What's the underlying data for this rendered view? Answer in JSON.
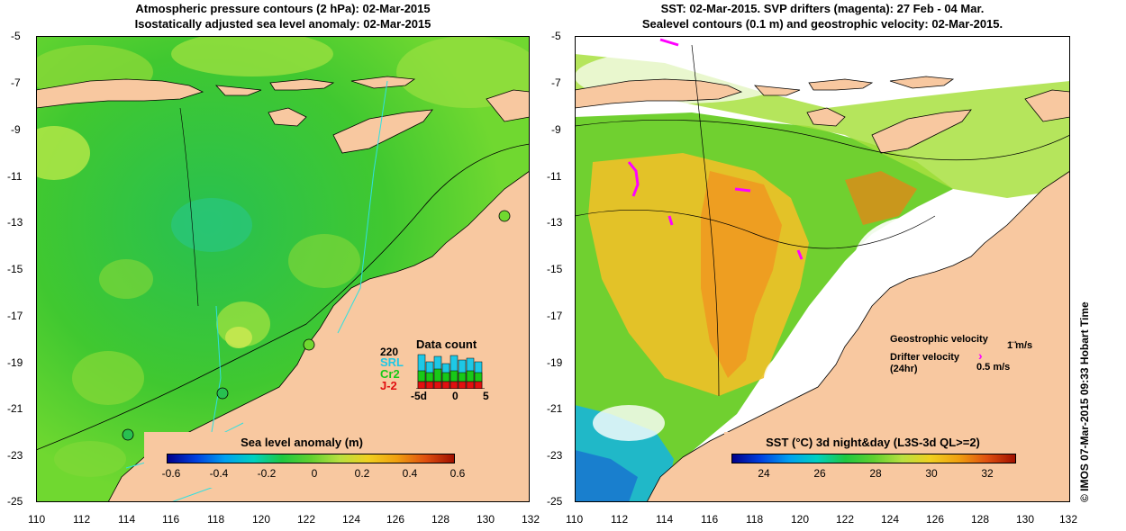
{
  "left_panel": {
    "title_line1": "Atmospheric pressure contours (2 hPa): 02-Mar-2015",
    "title_line2": "Isostatically adjusted sea level anomaly: 02-Mar-2015",
    "colorbar_label": "Sea level anomaly (m)",
    "colorbar_ticks": [
      "-0.6",
      "-0.4",
      "-0.2",
      "0",
      "0.2",
      "0.4",
      "0.6"
    ],
    "data_count": {
      "title": "Data count",
      "max_label": "220",
      "satellites": [
        {
          "name": "SRL",
          "color": "#1ec8e6"
        },
        {
          "name": "Cr2",
          "color": "#18c818"
        },
        {
          "name": "J-2",
          "color": "#e01010"
        }
      ],
      "axis_ticks": [
        "-5d",
        "0",
        "5"
      ]
    }
  },
  "right_panel": {
    "title_line1": "SST: 02-Mar-2015. SVP drifters (magenta): 27 Feb - 04 Mar.",
    "title_line2": "Sealevel contours (0.1 m) and geostrophic velocity: 02-Mar-2015.",
    "colorbar_label": "SST (°C) 3d night&day (L3S-3d QL>=2)",
    "colorbar_ticks": [
      "24",
      "26",
      "28",
      "30",
      "32"
    ],
    "legend": {
      "geostrophic_label": "Geostrophic velocity",
      "geostrophic_scale": "1 m/s",
      "drifter_label_line1": "Drifter velocity",
      "drifter_label_line2": "(24hr)",
      "drifter_scale": "0.5 m/s",
      "drifter_color": "#ff00ff"
    }
  },
  "axes": {
    "y_ticks": [
      "-5",
      "-7",
      "-9",
      "-11",
      "-13",
      "-15",
      "-17",
      "-19",
      "-21",
      "-23",
      "-25"
    ],
    "x_ticks": [
      "110",
      "112",
      "114",
      "116",
      "118",
      "120",
      "122",
      "124",
      "126",
      "128",
      "130",
      "132"
    ]
  },
  "colors": {
    "land": "#f8c8a0",
    "ocean_mid": "#4cc828",
    "ocean_light": "#9ee040",
    "sst_orange": "#f0a020",
    "coast": "#000000",
    "altimeter_track": "#30e0e0"
  },
  "credit": "© IMOS 07-Mar-2015 09:33 Hobart Time"
}
